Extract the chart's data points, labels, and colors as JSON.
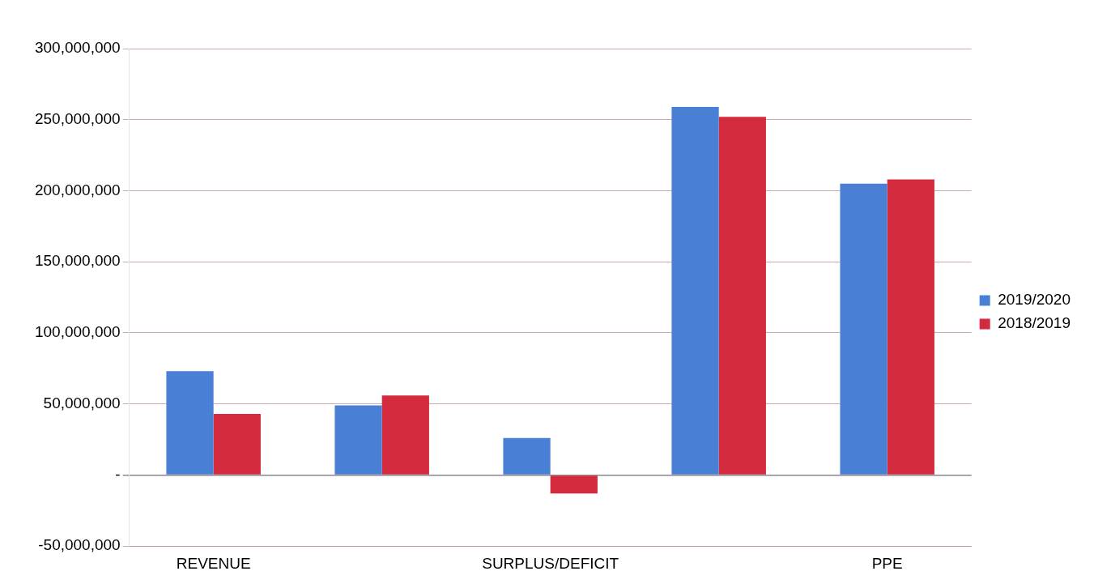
{
  "chart_data": {
    "type": "bar",
    "categories": [
      "REVENUE",
      null,
      "SURPLUS/DEFICIT",
      null,
      "PPE"
    ],
    "series": [
      {
        "name": "2019/2020",
        "color": "#4a7fd6",
        "values": [
          73000000,
          49000000,
          26000000,
          259000000,
          205000000
        ]
      },
      {
        "name": "2018/2019",
        "color": "#d42a3e",
        "values": [
          43000000,
          56000000,
          -13000000,
          252000000,
          208000000
        ]
      }
    ],
    "ylim": [
      -50000000,
      300000000
    ],
    "yticks": [
      {
        "value": -50000000,
        "label": "-50,000,000"
      },
      {
        "value": 0,
        "label": "-"
      },
      {
        "value": 50000000,
        "label": "50,000,000"
      },
      {
        "value": 100000000,
        "label": "100,000,000"
      },
      {
        "value": 150000000,
        "label": "150,000,000"
      },
      {
        "value": 200000000,
        "label": "200,000,000"
      },
      {
        "value": 250000000,
        "label": "250,000,000"
      },
      {
        "value": 300000000,
        "label": "300,000,000"
      }
    ],
    "grid": "y",
    "legend": "right"
  }
}
